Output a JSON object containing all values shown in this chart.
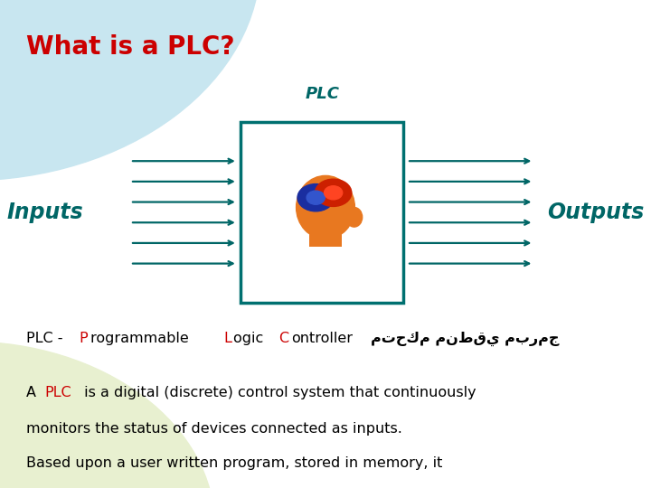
{
  "title": "What is a PLC?",
  "title_color": "#CC0000",
  "title_fontsize": 20,
  "bg_color": "#FFFFFF",
  "bg_circle_color": "#C8E6F0",
  "bg_circle2_color": "#E8F0D0",
  "plc_label": "PLC",
  "plc_label_color": "#006666",
  "plc_label_fontsize": 13,
  "inputs_label": "Inputs",
  "inputs_label_color": "#006666",
  "inputs_fontsize": 17,
  "outputs_label": "Outputs",
  "outputs_label_color": "#006666",
  "outputs_fontsize": 17,
  "arrow_color": "#006666",
  "box_color": "#007070",
  "head_color": "#E87820",
  "gear_blue": "#1A2EA0",
  "gear_red": "#CC2000",
  "n_arrows": 6,
  "text_fontsize": 11.5
}
